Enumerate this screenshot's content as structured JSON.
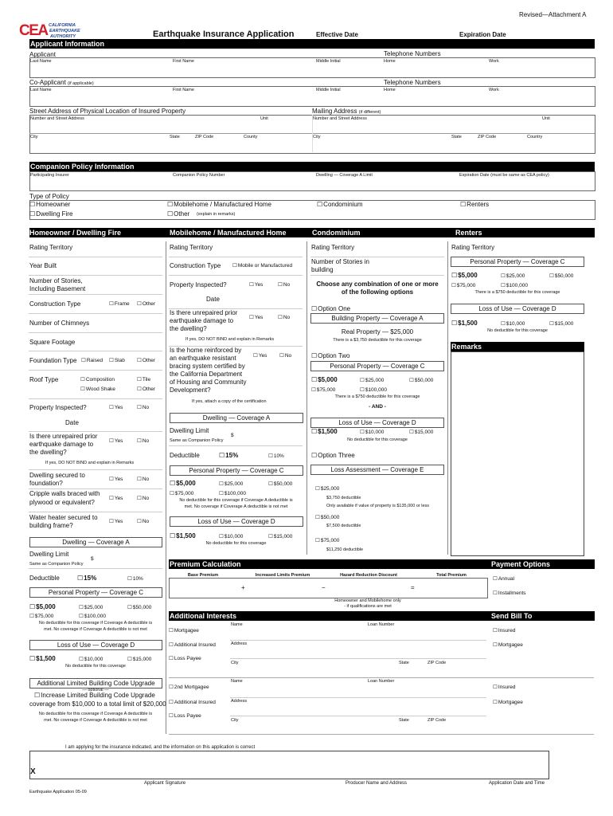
{
  "header": {
    "revision": "Revised—Attachment A",
    "logo_letters": "CEA",
    "logo_line1": "CALIFORNIA",
    "logo_line2": "EARTHQUAKE",
    "logo_line3": "AUTHORITY",
    "title": "Earthquake Insurance Application",
    "effective_date": "Effective Date",
    "expiration_date": "Expiration Date",
    "brand_color": "#d21f2b",
    "brand_blue": "#1e3f9a"
  },
  "applicant": {
    "bar": "Applicant Information",
    "applicant": "Applicant",
    "co_applicant": "Co-Applicant",
    "if_applicable": "(if applicable)",
    "telephone": "Telephone Numbers",
    "last_name": "Last Name",
    "first_name": "First Name",
    "middle_initial": "Middle Initial",
    "home": "Home",
    "work": "Work"
  },
  "address": {
    "physical": "Street Address of Physical Location of Insured Property",
    "mailing": "Mailing Address",
    "if_different": "(if different)",
    "street": "Number and Street Address",
    "unit": "Unit",
    "city": "City",
    "state": "State",
    "zip": "ZIP Code",
    "county": "County",
    "country": "Country"
  },
  "companion": {
    "bar": "Companion Policy Information",
    "insurer": "Participating Insurer",
    "policy_number": "Companion Policy Number",
    "dwelling_limit": "Dwelling — Coverage A Limit",
    "expiration": "Expiration Date (must be same as CEA policy)",
    "type_of_policy": "Type of Policy",
    "types": [
      "Homeowner",
      "Mobilehome / Manufactured Home",
      "Condominium",
      "Renters",
      "Dwelling Fire",
      "Other"
    ],
    "explain": "(explain in remarks)"
  },
  "sections": {
    "homeowner": "Homeowner / Dwelling Fire",
    "mobilehome": "Mobilehome / Manufactured Home",
    "condo": "Condominium",
    "renters": "Renters"
  },
  "common": {
    "rating_territory": "Rating Territory",
    "yes": "Yes",
    "no": "No",
    "other": "Other",
    "date": "Date",
    "property_inspected": "Property Inspected?",
    "unrepaired_1": "Is there unrepaired prior",
    "unrepaired_2": "earthquake damage to",
    "unrepaired_3": "the dwelling?",
    "do_not_bind": "If yes, DO NOT BIND and explain in Remarks",
    "cov_a": "Dwelling — Coverage A",
    "dwelling_limit": "Dwelling Limit",
    "same_as": "Same as Companion Policy",
    "dollar": "$",
    "deductible": "Deductible",
    "p15": "15%",
    "p10": "10%",
    "cov_c": "Personal Property — Coverage C",
    "cov_d": "Loss of Use — Coverage D",
    "a5000": "$5,000",
    "a25000": "$25,000",
    "a50000": "$50,000",
    "a75000": "$75,000",
    "a100000": "$100,000",
    "a1500": "$1,500",
    "a10000": "$10,000",
    "a15000": "$15,000",
    "nd_c_1": "No deductible for this coverage if Coverage A deductible is",
    "nd_c_2": "met. No coverage if Coverage A deductible is not met",
    "nd_d": "No deductible for this coverage",
    "d750": "There is a $750 deductible for this coverage"
  },
  "homeowner": {
    "year_built": "Year Built",
    "stories_1": "Number of Stories,",
    "stories_2": "Including Basement",
    "construction": "Construction Type",
    "frame": "Frame",
    "chimneys": "Number of Chimneys",
    "sqft": "Square Footage",
    "foundation": "Foundation Type",
    "raised": "Raised",
    "slab": "Slab",
    "roof": "Roof Type",
    "composition": "Composition",
    "tile": "Tile",
    "wood_shake": "Wood Shake",
    "secured_1": "Dwelling secured to",
    "secured_2": "foundation?",
    "cripple_1": "Cripple walls braced with",
    "cripple_2": "plywood or equivalent?",
    "water_1": "Water heater secured to",
    "water_2": "building frame?",
    "albcu": "Additional Limited Building Code Upgrade",
    "optional": "— optional —",
    "increase_1": "Increase Limited Building Code Upgrade",
    "increase_2": "coverage from $10,000 to a total limit of $20,000"
  },
  "mobilehome": {
    "construction": "Construction Type",
    "mobile": "Mobile or Manufactured",
    "reinforced": [
      "Is the home reinforced by",
      "an earthquake resistant",
      "bracing system certified by",
      "the California Department",
      "of Housing and Community",
      "Development?"
    ],
    "attach": "If yes, attach a copy of the certification"
  },
  "condo": {
    "stories_1": "Number of Stories in",
    "stories_2": "building",
    "choose_1": "Choose any combination of one or more",
    "choose_2": "of the following options",
    "option_one": "Option One",
    "cov_a": "Building Property — Coverage A",
    "real_property": "Real Property — $25,000",
    "d3750": "There is a $3,750 deductible for this coverage",
    "option_two": "Option Two",
    "and": "- AND -",
    "option_three": "Option Three",
    "cov_e": "Loss Assessment — Coverage E",
    "e1": "$25,000",
    "e1d": "$3,750 deductible",
    "e1n": "Only available if value of property is $135,000 or less",
    "e2": "$50,000",
    "e2d": "$7,500 deductible",
    "e3": "$75,000",
    "e3d": "$11,250 deductible"
  },
  "remarks": {
    "bar": "Remarks"
  },
  "premium": {
    "bar": "Premium Calculation",
    "base": "Base Premium",
    "increased": "Increased Limits Premium",
    "hazard": "Hazard Reduction Discount",
    "total": "Total Premium",
    "plus": "+",
    "minus": "−",
    "equals": "=",
    "note_1": "Homeowner and Mobilehome only",
    "note_2": "- if qualifications are met",
    "payment": "Payment Options",
    "annual": "Annual",
    "installments": "Installments"
  },
  "interests": {
    "bar": "Additional Interests",
    "send_bill": "Send Bill To",
    "mortgagee": "Mortgagee",
    "second_mortgagee": "2nd Mortgagee",
    "additional_insured": "Additional Insured",
    "loss_payee": "Loss Payee",
    "name": "Name",
    "loan": "Loan Number",
    "address": "Address",
    "city": "City",
    "state": "State",
    "zip": "ZIP Code",
    "insured": "Insured"
  },
  "signature": {
    "statement": "I am applying for the insurance indicated, and the information on this application is correct",
    "x": "X",
    "applicant": "Applicant Signature",
    "producer": "Producer Name and Address",
    "date_time": "Application Date and Time",
    "footer": "Earthquake Application 05-09"
  }
}
